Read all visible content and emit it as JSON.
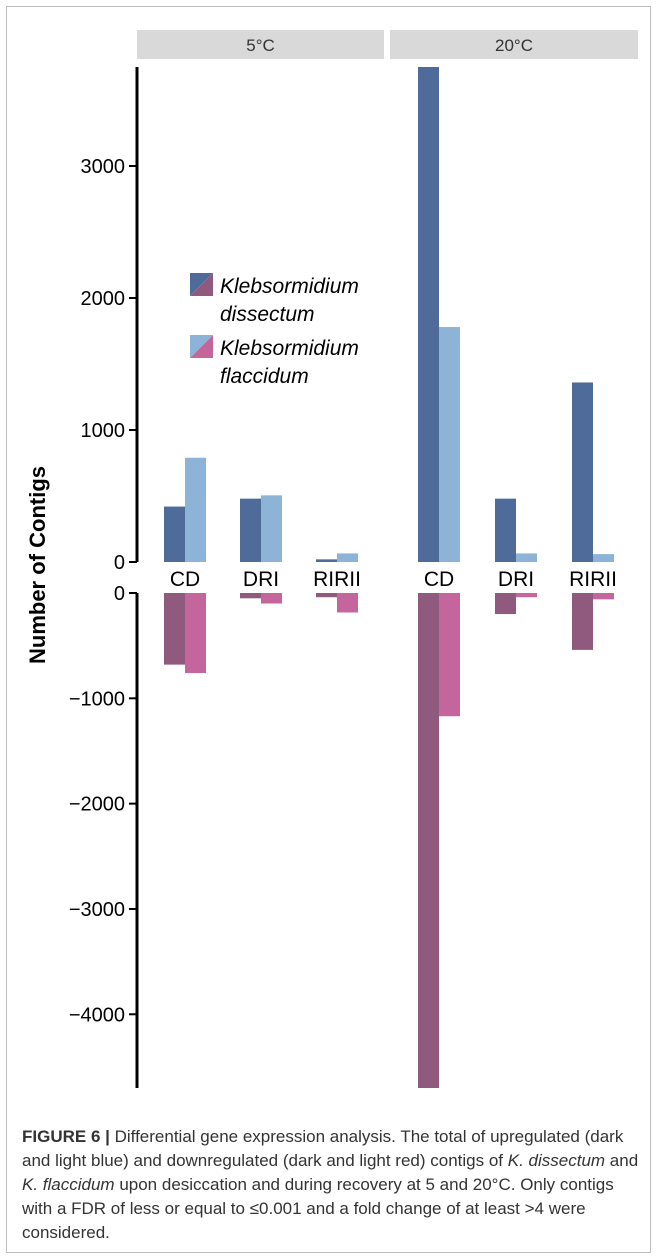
{
  "chart_data": {
    "type": "bar",
    "ylabel": "Number of Contigs",
    "panels": [
      {
        "name": "5°C",
        "categories": [
          "CD",
          "DRI",
          "RIRII"
        ]
      },
      {
        "name": "20°C",
        "categories": [
          "CD",
          "DRI",
          "RIRII"
        ]
      }
    ],
    "upper_axis": {
      "ylim": [
        0,
        3750
      ],
      "ticks": [
        0,
        1000,
        2000,
        3000
      ]
    },
    "lower_axis": {
      "ylim": [
        -4700,
        0
      ],
      "ticks": [
        0,
        -1000,
        -2000,
        -3000,
        -4000
      ]
    },
    "series": [
      {
        "name": "Klebsormidium dissectum",
        "direction": "up",
        "color": "#4e6b9a",
        "values": [
          420,
          480,
          20,
          3750,
          480,
          1360
        ]
      },
      {
        "name": "Klebsormidium flaccidum",
        "direction": "up",
        "color": "#8db4d6",
        "values": [
          790,
          505,
          65,
          1780,
          65,
          60
        ]
      },
      {
        "name": "Klebsormidium dissectum",
        "direction": "down",
        "color": "#8f5a7e",
        "values": [
          -680,
          -50,
          -40,
          -4700,
          -200,
          -540
        ]
      },
      {
        "name": "Klebsormidium flaccidum",
        "direction": "down",
        "color": "#c4659c",
        "values": [
          -760,
          -100,
          -185,
          -1170,
          -40,
          -60
        ]
      }
    ],
    "legend": {
      "placement": "top-left",
      "entries": [
        {
          "line1": "Klebsormidium",
          "line2": "dissectum",
          "up_color": "#4e6b9a",
          "down_color": "#8f5a7e"
        },
        {
          "line1": "Klebsormidium",
          "line2": "flaccidum",
          "up_color": "#8db4d6",
          "down_color": "#c4659c"
        }
      ]
    },
    "grid": false,
    "strip_color": "#d9d9d9"
  },
  "caption": {
    "label": "FIGURE 6 |",
    "text1": " Differential gene expression analysis. The total of upregulated (dark and light blue) and downregulated (dark and light red) contigs of ",
    "italic1": "K. dissectum",
    "text2": " and ",
    "italic2": "K. flaccidum",
    "text3": " upon desiccation and during recovery at 5 and 20°C. Only contigs with a FDR of less or equal to ≤0.001 and a fold change of at least >4 were considered."
  }
}
